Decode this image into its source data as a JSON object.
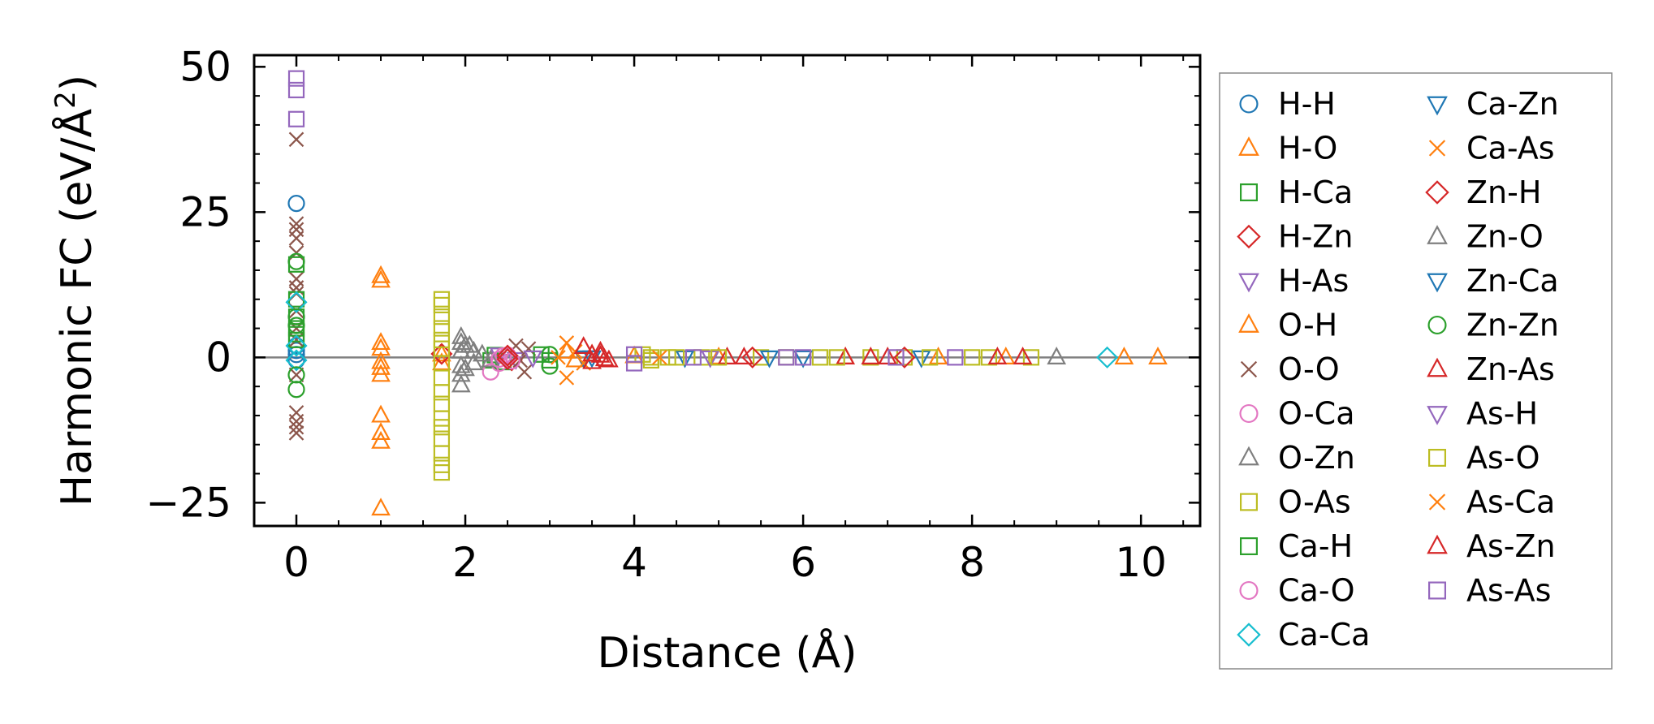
{
  "chart_data": {
    "type": "scatter",
    "xlabel": "Distance (Å)",
    "ylabel": "Harmonic FC (eV/Å²)",
    "ylabel_main": "Harmonic FC (eV/Å",
    "ylabel_sup": "2",
    "ylabel_end": ")",
    "xlim": [
      -0.5,
      10.7
    ],
    "ylim": [
      -29,
      52
    ],
    "xticks": [
      0,
      2,
      4,
      6,
      8,
      10
    ],
    "yticks": [
      50,
      25,
      0,
      -25
    ],
    "xtick_labels": [
      "0",
      "2",
      "4",
      "6",
      "8",
      "10"
    ],
    "ytick_labels": [
      "50",
      "25",
      "0",
      "−25"
    ],
    "grid": false,
    "legend_position": "outside-right",
    "zero_line": true,
    "series": [
      {
        "name": "H-H",
        "marker": "circle",
        "color": "#1f77b4",
        "points": [
          [
            0,
            26.5
          ],
          [
            0,
            2.0
          ],
          [
            0,
            0.5
          ],
          [
            0,
            -0.5
          ],
          [
            0,
            1.2
          ]
        ]
      },
      {
        "name": "H-O",
        "marker": "triangle-up",
        "color": "#ff7f0e",
        "points": [
          [
            1.0,
            14.0
          ],
          [
            1.0,
            13.2
          ],
          [
            1.0,
            2.5
          ],
          [
            1.0,
            1.5
          ],
          [
            1.0,
            -0.8
          ],
          [
            1.0,
            -1.8
          ],
          [
            1.0,
            -3.0
          ],
          [
            1.0,
            -10.0
          ],
          [
            1.0,
            -13.0
          ],
          [
            1.0,
            -14.5
          ],
          [
            1.0,
            -26.0
          ],
          [
            1.72,
            -1.0
          ],
          [
            1.72,
            0.5
          ]
        ]
      },
      {
        "name": "H-Ca",
        "marker": "square",
        "color": "#2ca02c",
        "points": [
          [
            2.3,
            -0.5
          ],
          [
            2.35,
            0.4
          ],
          [
            2.45,
            -0.8
          ]
        ]
      },
      {
        "name": "H-Zn",
        "marker": "diamond",
        "color": "#d62728",
        "points": [
          [
            1.72,
            0.6
          ],
          [
            2.5,
            0.3
          ],
          [
            2.55,
            -0.5
          ]
        ]
      },
      {
        "name": "H-As",
        "marker": "triangle-down",
        "color": "#9467bd",
        "points": [
          [
            2.4,
            0.5
          ],
          [
            2.6,
            -0.3
          ]
        ]
      },
      {
        "name": "O-H",
        "marker": "triangle-up",
        "color": "#ff7f0e",
        "points": [
          [
            3.2,
            1.0
          ],
          [
            3.3,
            -0.5
          ],
          [
            3.5,
            0.5
          ],
          [
            4.0,
            0.2
          ],
          [
            5.0,
            0.0
          ],
          [
            6.5,
            0.0
          ],
          [
            7.6,
            0.0
          ],
          [
            8.4,
            0.0
          ],
          [
            9.8,
            0.0
          ],
          [
            10.2,
            0.0
          ]
        ]
      },
      {
        "name": "O-O",
        "marker": "x",
        "color": "#8c564b",
        "points": [
          [
            0,
            37.5
          ],
          [
            0,
            23.0
          ],
          [
            0,
            22.0
          ],
          [
            0,
            20.5
          ],
          [
            0,
            18.0
          ],
          [
            0,
            13.5
          ],
          [
            0,
            12.0
          ],
          [
            0,
            11.0
          ],
          [
            0,
            8.0
          ],
          [
            0,
            5.0
          ],
          [
            0,
            3.0
          ],
          [
            0,
            -3.0
          ],
          [
            0,
            -9.5
          ],
          [
            0,
            -11.0
          ],
          [
            0,
            -12.0
          ],
          [
            0,
            -13.0
          ],
          [
            2.6,
            2.0
          ],
          [
            2.65,
            -0.5
          ],
          [
            2.7,
            -2.5
          ],
          [
            2.75,
            1.5
          ]
        ]
      },
      {
        "name": "O-Ca",
        "marker": "circle",
        "color": "#e377c2",
        "points": [
          [
            2.3,
            -2.5
          ],
          [
            2.4,
            -1.0
          ],
          [
            2.45,
            0.3
          ],
          [
            2.5,
            0.2
          ]
        ]
      },
      {
        "name": "O-Zn",
        "marker": "triangle-up",
        "color": "#7f7f7f",
        "points": [
          [
            1.95,
            3.5
          ],
          [
            1.95,
            2.5
          ],
          [
            1.95,
            1.0
          ],
          [
            1.95,
            -1.5
          ],
          [
            1.95,
            -3.0
          ],
          [
            1.95,
            -4.8
          ],
          [
            2.05,
            2.0
          ],
          [
            2.1,
            1.0
          ],
          [
            2.1,
            -1.0
          ],
          [
            2.2,
            0.5
          ],
          [
            2.3,
            -0.5
          ],
          [
            9.0,
            0.0
          ]
        ]
      },
      {
        "name": "O-As",
        "marker": "square",
        "color": "#bcbd22",
        "points": [
          [
            1.72,
            10.0
          ],
          [
            1.72,
            9.0
          ],
          [
            1.72,
            7.0
          ],
          [
            1.72,
            5.0
          ],
          [
            1.72,
            3.0
          ],
          [
            1.72,
            1.5
          ],
          [
            1.72,
            -1.0
          ],
          [
            1.72,
            -3.5
          ],
          [
            1.72,
            -6.0
          ],
          [
            1.72,
            -8.0
          ],
          [
            1.72,
            -10.5
          ],
          [
            1.72,
            -12.0
          ],
          [
            1.72,
            -14.0
          ],
          [
            1.72,
            -16.5
          ],
          [
            1.72,
            -18.5
          ],
          [
            1.72,
            -19.8
          ],
          [
            4.2,
            0.0
          ],
          [
            4.4,
            0.0
          ],
          [
            4.8,
            0.0
          ],
          [
            5.5,
            0.0
          ],
          [
            6.2,
            0.0
          ],
          [
            6.8,
            0.0
          ],
          [
            7.2,
            0.0
          ],
          [
            8.0,
            0.0
          ],
          [
            8.7,
            0.0
          ]
        ]
      },
      {
        "name": "Ca-H",
        "marker": "square",
        "color": "#2ca02c",
        "points": [
          [
            0,
            16.0
          ],
          [
            0,
            10.0
          ],
          [
            0,
            7.0
          ],
          [
            0,
            5.0
          ],
          [
            0,
            4.0
          ],
          [
            0,
            3.0
          ],
          [
            2.9,
            0.5
          ],
          [
            3.0,
            -0.5
          ]
        ]
      },
      {
        "name": "Ca-O",
        "marker": "circle",
        "color": "#e377c2",
        "points": [
          [
            2.4,
            -0.3
          ],
          [
            2.5,
            0.4
          ],
          [
            2.55,
            -0.6
          ]
        ]
      },
      {
        "name": "Ca-Ca",
        "marker": "diamond",
        "color": "#17becf",
        "points": [
          [
            0,
            9.5
          ],
          [
            0,
            2.0
          ],
          [
            0,
            -0.5
          ],
          [
            9.6,
            0.0
          ]
        ]
      },
      {
        "name": "Ca-Zn",
        "marker": "triangle-down",
        "color": "#1f77b4",
        "points": [
          [
            3.4,
            0.0
          ],
          [
            4.6,
            0.0
          ],
          [
            6.0,
            0.0
          ]
        ]
      },
      {
        "name": "Ca-As",
        "marker": "x",
        "color": "#ff7f0e",
        "points": [
          [
            3.2,
            2.5
          ],
          [
            3.2,
            -3.5
          ],
          [
            3.3,
            1.0
          ],
          [
            3.4,
            -1.0
          ]
        ]
      },
      {
        "name": "Zn-H",
        "marker": "diamond",
        "color": "#d62728",
        "points": [
          [
            2.5,
            0.3
          ],
          [
            2.5,
            -0.3
          ],
          [
            5.4,
            0.0
          ],
          [
            7.2,
            0.0
          ]
        ]
      },
      {
        "name": "Zn-O",
        "marker": "triangle-up",
        "color": "#7f7f7f",
        "points": [
          [
            2.0,
            2.0
          ],
          [
            2.0,
            -2.0
          ]
        ]
      },
      {
        "name": "Zn-Ca",
        "marker": "triangle-down",
        "color": "#1f77b4",
        "points": [
          [
            3.5,
            0.0
          ],
          [
            5.6,
            0.0
          ],
          [
            7.4,
            0.0
          ]
        ]
      },
      {
        "name": "Zn-Zn",
        "marker": "circle",
        "color": "#2ca02c",
        "points": [
          [
            0,
            16.5
          ],
          [
            0,
            7.0
          ],
          [
            0,
            5.5
          ],
          [
            0,
            -3.0
          ],
          [
            0,
            -5.5
          ],
          [
            3.0,
            -1.5
          ],
          [
            3.0,
            0.5
          ]
        ]
      },
      {
        "name": "Zn-As",
        "marker": "triangle-up",
        "color": "#d62728",
        "points": [
          [
            3.4,
            1.8
          ],
          [
            3.5,
            0.5
          ],
          [
            3.5,
            -0.8
          ],
          [
            3.6,
            1.0
          ],
          [
            3.7,
            -0.5
          ],
          [
            5.1,
            0.0
          ],
          [
            5.3,
            0.0
          ],
          [
            6.5,
            0.0
          ],
          [
            7.0,
            0.0
          ],
          [
            8.6,
            0.0
          ]
        ]
      },
      {
        "name": "As-H",
        "marker": "triangle-down",
        "color": "#9467bd",
        "points": [
          [
            2.8,
            0.0
          ],
          [
            4.9,
            0.0
          ]
        ]
      },
      {
        "name": "As-O",
        "marker": "square",
        "color": "#bcbd22",
        "points": [
          [
            4.1,
            0.5
          ],
          [
            4.2,
            -0.5
          ],
          [
            4.5,
            0.0
          ],
          [
            5.0,
            0.0
          ],
          [
            5.8,
            0.0
          ],
          [
            6.4,
            0.0
          ],
          [
            7.5,
            0.0
          ],
          [
            8.2,
            0.0
          ]
        ]
      },
      {
        "name": "As-Ca",
        "marker": "x",
        "color": "#ff7f0e",
        "points": [
          [
            3.1,
            0.0
          ],
          [
            4.3,
            0.0
          ]
        ]
      },
      {
        "name": "As-Zn",
        "marker": "triangle-up",
        "color": "#d62728",
        "points": [
          [
            3.6,
            0.3
          ],
          [
            3.65,
            -0.3
          ],
          [
            6.8,
            0.0
          ],
          [
            8.3,
            0.0
          ]
        ]
      },
      {
        "name": "As-As",
        "marker": "square",
        "color": "#9467bd",
        "points": [
          [
            0,
            48.0
          ],
          [
            0,
            46.0
          ],
          [
            0,
            41.0
          ],
          [
            4.0,
            0.5
          ],
          [
            4.0,
            -1.0
          ],
          [
            4.7,
            0.0
          ],
          [
            5.8,
            0.0
          ],
          [
            6.0,
            0.0
          ],
          [
            7.1,
            0.0
          ],
          [
            7.8,
            0.0
          ]
        ]
      }
    ]
  }
}
